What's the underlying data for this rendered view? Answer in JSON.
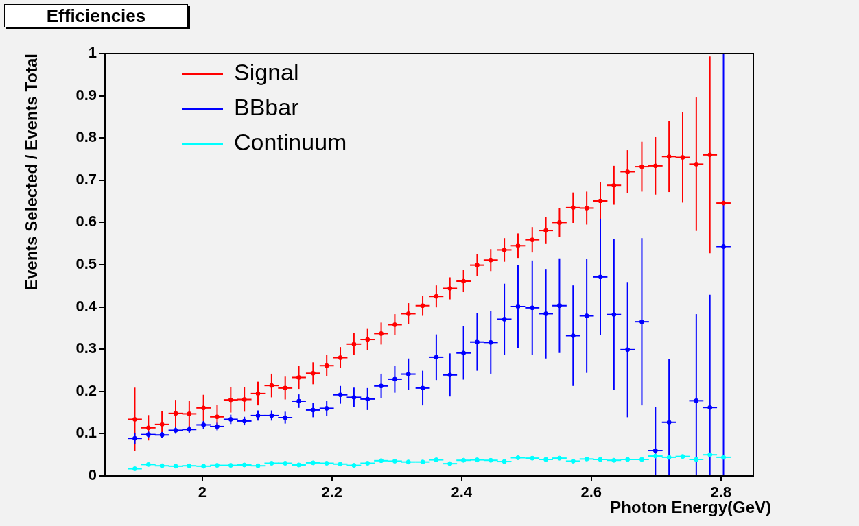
{
  "chart_data": {
    "type": "scatter",
    "title": "Efficiencies",
    "xlabel": "Photon Energy(GeV)",
    "ylabel": "Events Selected / Events Total",
    "x": [
      1.896,
      1.917,
      1.938,
      1.959,
      1.98,
      2.002,
      2.023,
      2.044,
      2.065,
      2.086,
      2.107,
      2.128,
      2.149,
      2.171,
      2.192,
      2.213,
      2.234,
      2.255,
      2.276,
      2.297,
      2.318,
      2.34,
      2.361,
      2.382,
      2.403,
      2.424,
      2.445,
      2.466,
      2.487,
      2.509,
      2.53,
      2.551,
      2.572,
      2.593,
      2.614,
      2.635,
      2.656,
      2.678,
      2.699,
      2.72,
      2.741,
      2.762,
      2.783,
      2.804
    ],
    "series": [
      {
        "name": "Signal",
        "color": "#ff0000",
        "values": [
          0.134,
          0.114,
          0.122,
          0.148,
          0.147,
          0.161,
          0.14,
          0.18,
          0.181,
          0.195,
          0.214,
          0.208,
          0.233,
          0.243,
          0.261,
          0.28,
          0.312,
          0.323,
          0.337,
          0.358,
          0.384,
          0.403,
          0.425,
          0.444,
          0.461,
          0.499,
          0.511,
          0.535,
          0.545,
          0.559,
          0.581,
          0.6,
          0.635,
          0.634,
          0.651,
          0.688,
          0.72,
          0.732,
          0.734,
          0.756,
          0.754,
          0.738,
          0.76,
          0.646
        ],
        "errors": [
          0.075,
          0.03,
          0.032,
          0.032,
          0.03,
          0.031,
          0.028,
          0.03,
          0.029,
          0.028,
          0.028,
          0.027,
          0.027,
          0.026,
          0.025,
          0.025,
          0.026,
          0.025,
          0.026,
          0.025,
          0.025,
          0.024,
          0.026,
          0.026,
          0.026,
          0.026,
          0.026,
          0.028,
          0.029,
          0.03,
          0.032,
          0.034,
          0.036,
          0.039,
          0.044,
          0.046,
          0.051,
          0.059,
          0.068,
          0.084,
          0.107,
          0.158,
          0.233,
          null
        ],
        "xerrors": [
          0.011,
          0.011,
          0.011,
          0.011,
          0.011,
          0.011,
          0.011,
          0.011,
          0.011,
          0.011,
          0.011,
          0.011,
          0.011,
          0.011,
          0.011,
          0.011,
          0.011,
          0.011,
          0.011,
          0.011,
          0.011,
          0.011,
          0.011,
          0.011,
          0.011,
          0.011,
          0.011,
          0.011,
          0.011,
          0.011,
          0.011,
          0.011,
          0.011,
          0.011,
          0.011,
          0.011,
          0.011,
          0.011,
          0.011,
          0.011,
          0.011,
          0.011,
          0.011,
          0.011
        ]
      },
      {
        "name": "BBbar",
        "color": "#0000ff",
        "values": [
          0.089,
          0.098,
          0.097,
          0.108,
          0.11,
          0.121,
          0.117,
          0.134,
          0.13,
          0.143,
          0.143,
          0.138,
          0.177,
          0.156,
          0.16,
          0.192,
          0.186,
          0.182,
          0.213,
          0.229,
          0.241,
          0.208,
          0.281,
          0.239,
          0.291,
          0.317,
          0.316,
          0.371,
          0.401,
          0.398,
          0.384,
          0.403,
          0.332,
          0.379,
          0.471,
          0.382,
          0.299,
          0.365,
          0.06,
          0.127,
          null,
          0.178,
          0.162,
          0.543
        ],
        "errors": [
          0.013,
          0.007,
          0.007,
          0.008,
          0.008,
          0.009,
          0.009,
          0.011,
          0.01,
          0.012,
          0.012,
          0.014,
          0.016,
          0.017,
          0.018,
          0.021,
          0.023,
          0.026,
          0.029,
          0.032,
          0.037,
          0.041,
          0.054,
          0.051,
          0.063,
          0.068,
          0.074,
          0.084,
          0.098,
          0.112,
          0.106,
          0.112,
          0.119,
          0.135,
          0.138,
          0.179,
          0.16,
          0.198,
          0.104,
          0.15,
          null,
          0.205,
          0.267,
          [
            0,
            1
          ]
        ],
        "xerrors": [
          0.011,
          0.011,
          0.011,
          0.011,
          0.011,
          0.011,
          0.011,
          0.011,
          0.011,
          0.011,
          0.011,
          0.011,
          0.011,
          0.011,
          0.011,
          0.011,
          0.011,
          0.011,
          0.011,
          0.011,
          0.011,
          0.011,
          0.011,
          0.011,
          0.011,
          0.011,
          0.011,
          0.011,
          0.011,
          0.011,
          0.011,
          0.011,
          0.011,
          0.011,
          0.011,
          0.011,
          0.011,
          0.011,
          0.011,
          0.011,
          null,
          0.011,
          0.011,
          0.011
        ]
      },
      {
        "name": "Continuum",
        "color": "#00ffff",
        "values": [
          0.017,
          0.027,
          0.024,
          0.023,
          0.024,
          0.023,
          0.025,
          0.025,
          0.026,
          0.024,
          0.03,
          0.03,
          0.026,
          0.031,
          0.03,
          0.028,
          0.025,
          0.03,
          0.036,
          0.035,
          0.033,
          0.033,
          0.038,
          0.029,
          0.037,
          0.038,
          0.037,
          0.034,
          0.043,
          0.042,
          0.039,
          0.042,
          0.035,
          0.04,
          0.039,
          0.037,
          0.039,
          0.039,
          0.047,
          0.044,
          0.046,
          0.039,
          0.05,
          0.044
        ],
        "errors": [
          0.003,
          0.003,
          0.003,
          0.003,
          0.003,
          0.003,
          0.003,
          0.003,
          0.003,
          0.003,
          0.003,
          0.003,
          0.003,
          0.003,
          0.003,
          0.003,
          0.003,
          0.003,
          0.003,
          0.003,
          0.003,
          0.003,
          0.003,
          0.003,
          0.003,
          0.003,
          0.003,
          0.003,
          0.003,
          0.003,
          0.003,
          0.003,
          0.003,
          0.003,
          0.003,
          0.003,
          0.003,
          0.003,
          0.003,
          0.003,
          0.003,
          0.003,
          0.003,
          0.003
        ],
        "xerrors": [
          0.011,
          0.011,
          0.011,
          0.011,
          0.011,
          0.011,
          0.011,
          0.011,
          0.011,
          0.011,
          0.011,
          0.011,
          0.011,
          0.011,
          0.011,
          0.011,
          0.011,
          0.011,
          0.011,
          0.011,
          0.011,
          0.011,
          0.011,
          0.011,
          0.011,
          0.011,
          0.011,
          0.011,
          0.011,
          0.011,
          0.011,
          0.011,
          0.011,
          0.011,
          0.011,
          0.011,
          0.011,
          0.011,
          0.011,
          0.011,
          0.011,
          0.011,
          0.011,
          0.011
        ]
      }
    ],
    "xlim": [
      1.85,
      2.85
    ],
    "xticks": [
      2,
      2.2,
      2.4,
      2.6,
      2.8
    ],
    "ylim": [
      0,
      1
    ],
    "yticks": [
      0,
      0.1,
      0.2,
      0.3,
      0.4,
      0.5,
      0.6,
      0.7,
      0.8,
      0.9,
      1
    ],
    "marker": "circle",
    "legend": "top left"
  }
}
